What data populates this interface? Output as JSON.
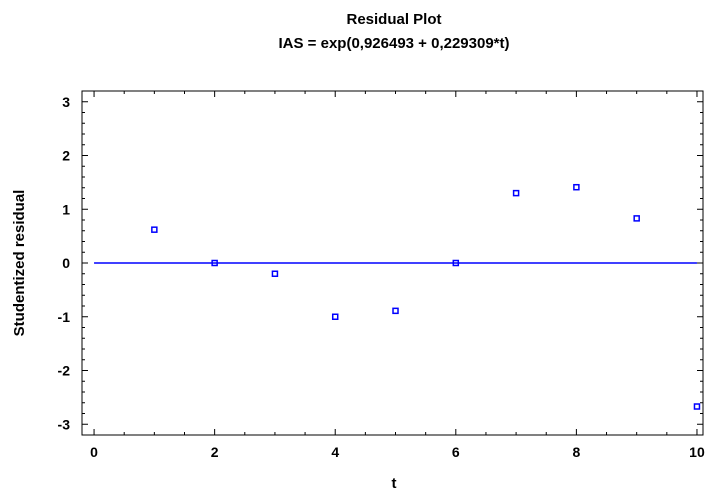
{
  "chart_data": {
    "type": "scatter",
    "title": "Residual Plot",
    "subtitle": "IAS = exp(0,926493 + 0,229309*t)",
    "xlabel": "t",
    "ylabel": "Studentized residual",
    "xlim": [
      -0.2,
      10.1
    ],
    "ylim": [
      -3.2,
      3.2
    ],
    "xticks": [
      0,
      2,
      4,
      6,
      8,
      10
    ],
    "xtick_labels": [
      "0",
      "2",
      "4",
      "6",
      "8",
      "10"
    ],
    "yticks": [
      -3,
      -2,
      -1,
      0,
      1,
      2,
      3
    ],
    "ytick_labels": [
      "-3",
      "-2",
      "-1",
      "0",
      "1",
      "2",
      "3"
    ],
    "grid": false,
    "reference_line": {
      "y": 0,
      "x_range": [
        0,
        10
      ]
    },
    "series": [
      {
        "x": [
          1,
          2,
          3,
          4,
          5,
          6,
          7,
          8,
          9,
          10
        ],
        "y": [
          0.62,
          0.0,
          -0.2,
          -1.0,
          -0.89,
          0.0,
          1.3,
          1.41,
          0.83,
          -2.67
        ]
      }
    ],
    "colors": {
      "marker": "#0000ff",
      "reference_line": "#0000ff",
      "axis": "#000000"
    }
  }
}
